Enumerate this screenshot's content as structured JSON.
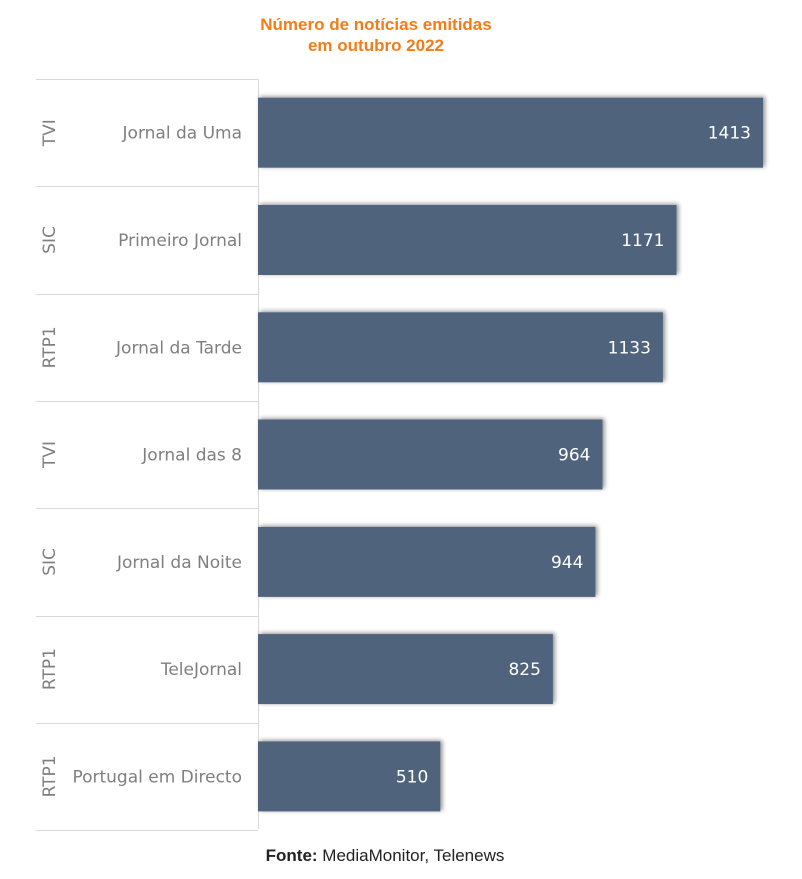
{
  "title_line1": "Número de notícias emitidas",
  "title_line2": "em outubro 2022",
  "source_label": "Fonte:",
  "source_text": "MediaMonitor, Telenews",
  "colors": {
    "bar": "#4F647C",
    "title": "#F07D1A",
    "label": "#7F7F7F",
    "grid": "#D9D9D9",
    "value_text": "#FFFFFF"
  },
  "chart_data": {
    "type": "bar",
    "orientation": "horizontal",
    "categories": [
      {
        "group": "TVI",
        "program": "Jornal da Uma"
      },
      {
        "group": "SIC",
        "program": "Primeiro Jornal"
      },
      {
        "group": "RTP1",
        "program": "Jornal da Tarde"
      },
      {
        "group": "TVI",
        "program": "Jornal das 8"
      },
      {
        "group": "SIC",
        "program": "Jornal da Noite"
      },
      {
        "group": "RTP1",
        "program": "TeleJornal"
      },
      {
        "group": "RTP1",
        "program": "Portugal em Directo"
      }
    ],
    "values": [
      1413,
      1171,
      1133,
      964,
      944,
      825,
      510
    ],
    "grid": false,
    "legend": "none"
  }
}
